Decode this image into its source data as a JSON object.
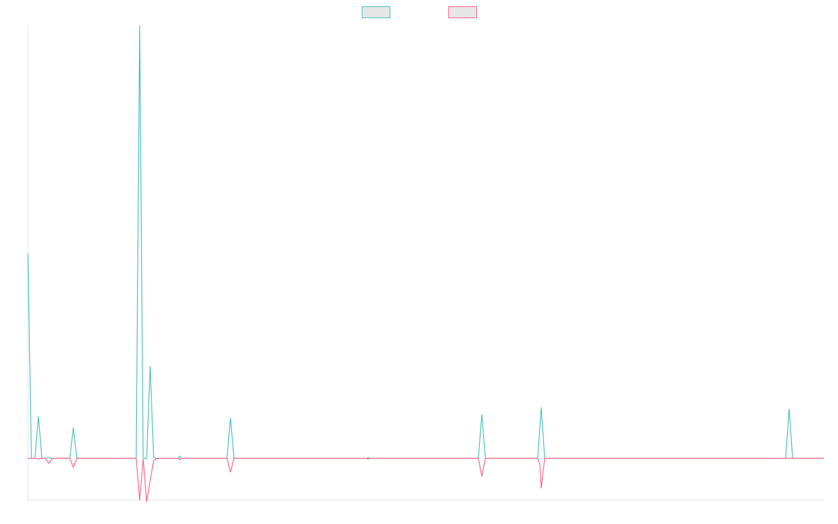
{
  "colors": {
    "series_a": "#4bc0c0",
    "series_b": "#ff6384",
    "legend_fill": "#e6e6e6",
    "axis": "#e0e0e0"
  },
  "chart_data": {
    "type": "line",
    "title": "",
    "xlabel": "",
    "ylabel": "",
    "grid": false,
    "legend": "top-center",
    "x_range": [
      0,
      228
    ],
    "ylim": [
      -60,
      620
    ],
    "series": [
      {
        "name": "",
        "color": "#4bc0c0",
        "points": [
          [
            0,
            293
          ],
          [
            1,
            0
          ],
          [
            2,
            0
          ],
          [
            3,
            60
          ],
          [
            4,
            0
          ],
          [
            5,
            0
          ],
          [
            6,
            1
          ],
          [
            7,
            0
          ],
          [
            12,
            0
          ],
          [
            13,
            44
          ],
          [
            14,
            0
          ],
          [
            31,
            0
          ],
          [
            32,
            620
          ],
          [
            33,
            0
          ],
          [
            34,
            0
          ],
          [
            35,
            132
          ],
          [
            36,
            1
          ],
          [
            37,
            0
          ],
          [
            43,
            0
          ],
          [
            43.4,
            3
          ],
          [
            44,
            0
          ],
          [
            57,
            0
          ],
          [
            58,
            58
          ],
          [
            59,
            0
          ],
          [
            97,
            0
          ],
          [
            97.4,
            1
          ],
          [
            98,
            0
          ],
          [
            129,
            0
          ],
          [
            130,
            63
          ],
          [
            131,
            0
          ],
          [
            146,
            0
          ],
          [
            147,
            73
          ],
          [
            148,
            0
          ],
          [
            217,
            0
          ],
          [
            218,
            71
          ],
          [
            219,
            0
          ],
          [
            228,
            0
          ]
        ]
      },
      {
        "name": "",
        "color": "#ff6384",
        "points": [
          [
            0,
            0
          ],
          [
            2,
            0
          ],
          [
            3,
            -1
          ],
          [
            4,
            0
          ],
          [
            5,
            0
          ],
          [
            6,
            -7
          ],
          [
            7,
            0
          ],
          [
            12,
            0
          ],
          [
            13,
            -13
          ],
          [
            14,
            0
          ],
          [
            31,
            0
          ],
          [
            32,
            -60
          ],
          [
            33,
            -1
          ],
          [
            34,
            -62
          ],
          [
            35,
            -32
          ],
          [
            36,
            -3
          ],
          [
            37,
            0
          ],
          [
            43,
            0
          ],
          [
            43.4,
            -2
          ],
          [
            44,
            0
          ],
          [
            57,
            0
          ],
          [
            58,
            -20
          ],
          [
            59,
            0
          ],
          [
            97,
            0
          ],
          [
            97.4,
            -1
          ],
          [
            98,
            0
          ],
          [
            129,
            0
          ],
          [
            130,
            -26
          ],
          [
            131,
            0
          ],
          [
            146,
            0
          ],
          [
            146.6,
            -8
          ],
          [
            147,
            -43
          ],
          [
            148,
            0
          ],
          [
            228,
            0
          ]
        ]
      }
    ]
  }
}
